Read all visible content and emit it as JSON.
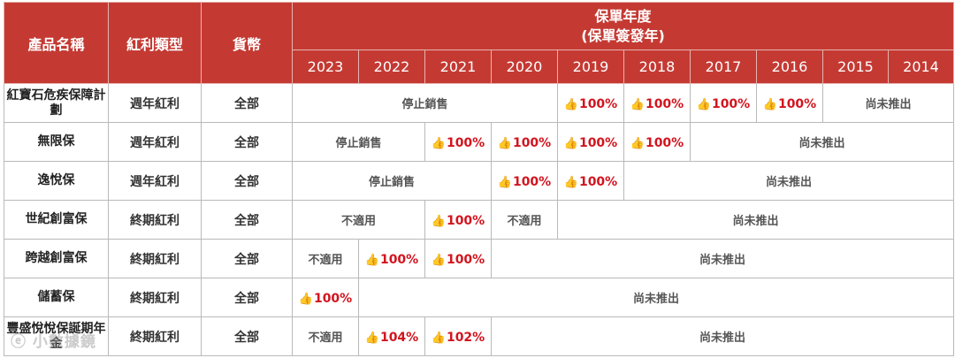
{
  "headers": {
    "product_name": "產品名稱",
    "dividend_type": "紅利類型",
    "currency": "貨幣",
    "policy_year": "保單年度",
    "policy_year_sub": "(保單簽發年)",
    "years": [
      "2023",
      "2022",
      "2021",
      "2020",
      "2019",
      "2018",
      "2017",
      "2016",
      "2015",
      "2014"
    ]
  },
  "rows": [
    {
      "name": "紅寶石危疾保障計劃",
      "type": "週年紅利",
      "currency": "全部",
      "cells": [
        {
          "text": "停止銷售",
          "span": 4,
          "kind": "text"
        },
        {
          "text": "100%",
          "span": 1,
          "kind": "pct"
        },
        {
          "text": "100%",
          "span": 1,
          "kind": "pct"
        },
        {
          "text": "100%",
          "span": 1,
          "kind": "pct"
        },
        {
          "text": "100%",
          "span": 1,
          "kind": "pct"
        },
        {
          "text": "尚未推出",
          "span": 2,
          "kind": "text"
        }
      ]
    },
    {
      "name": "無限保",
      "type": "週年紅利",
      "currency": "全部",
      "cells": [
        {
          "text": "停止銷售",
          "span": 2,
          "kind": "text"
        },
        {
          "text": "100%",
          "span": 1,
          "kind": "pct"
        },
        {
          "text": "100%",
          "span": 1,
          "kind": "pct"
        },
        {
          "text": "100%",
          "span": 1,
          "kind": "pct"
        },
        {
          "text": "100%",
          "span": 1,
          "kind": "pct"
        },
        {
          "text": "尚未推出",
          "span": 4,
          "kind": "text"
        }
      ]
    },
    {
      "name": "逸悅保",
      "type": "週年紅利",
      "currency": "全部",
      "cells": [
        {
          "text": "停止銷售",
          "span": 3,
          "kind": "text"
        },
        {
          "text": "100%",
          "span": 1,
          "kind": "pct"
        },
        {
          "text": "100%",
          "span": 1,
          "kind": "pct"
        },
        {
          "text": "尚未推出",
          "span": 5,
          "kind": "text"
        }
      ]
    },
    {
      "name": "世紀創富保",
      "type": "終期紅利",
      "currency": "全部",
      "cells": [
        {
          "text": "不適用",
          "span": 2,
          "kind": "text"
        },
        {
          "text": "100%",
          "span": 1,
          "kind": "pct"
        },
        {
          "text": "不適用",
          "span": 1,
          "kind": "text"
        },
        {
          "text": "尚未推出",
          "span": 6,
          "kind": "text"
        }
      ]
    },
    {
      "name": "跨越創富保",
      "type": "終期紅利",
      "currency": "全部",
      "cells": [
        {
          "text": "不適用",
          "span": 1,
          "kind": "text"
        },
        {
          "text": "100%",
          "span": 1,
          "kind": "pct"
        },
        {
          "text": "100%",
          "span": 1,
          "kind": "pct"
        },
        {
          "text": "尚未推出",
          "span": 7,
          "kind": "text"
        }
      ]
    },
    {
      "name": "儲蓄保",
      "type": "終期紅利",
      "currency": "全部",
      "cells": [
        {
          "text": "100%",
          "span": 1,
          "kind": "pct"
        },
        {
          "text": "尚未推出",
          "span": 9,
          "kind": "text"
        }
      ]
    },
    {
      "name": "豐盛悅悅保誕期年金",
      "type": "終期紅利",
      "currency": "全部",
      "cells": [
        {
          "text": "不適用",
          "span": 1,
          "kind": "text"
        },
        {
          "text": "104%",
          "span": 1,
          "kind": "pct"
        },
        {
          "text": "102%",
          "span": 1,
          "kind": "pct"
        },
        {
          "text": "尚未推出",
          "span": 7,
          "kind": "text"
        }
      ]
    }
  ],
  "thumb_icon": "thumbs-up-icon",
  "accent_color": "#c43a33",
  "pct_color": "#d2141e"
}
